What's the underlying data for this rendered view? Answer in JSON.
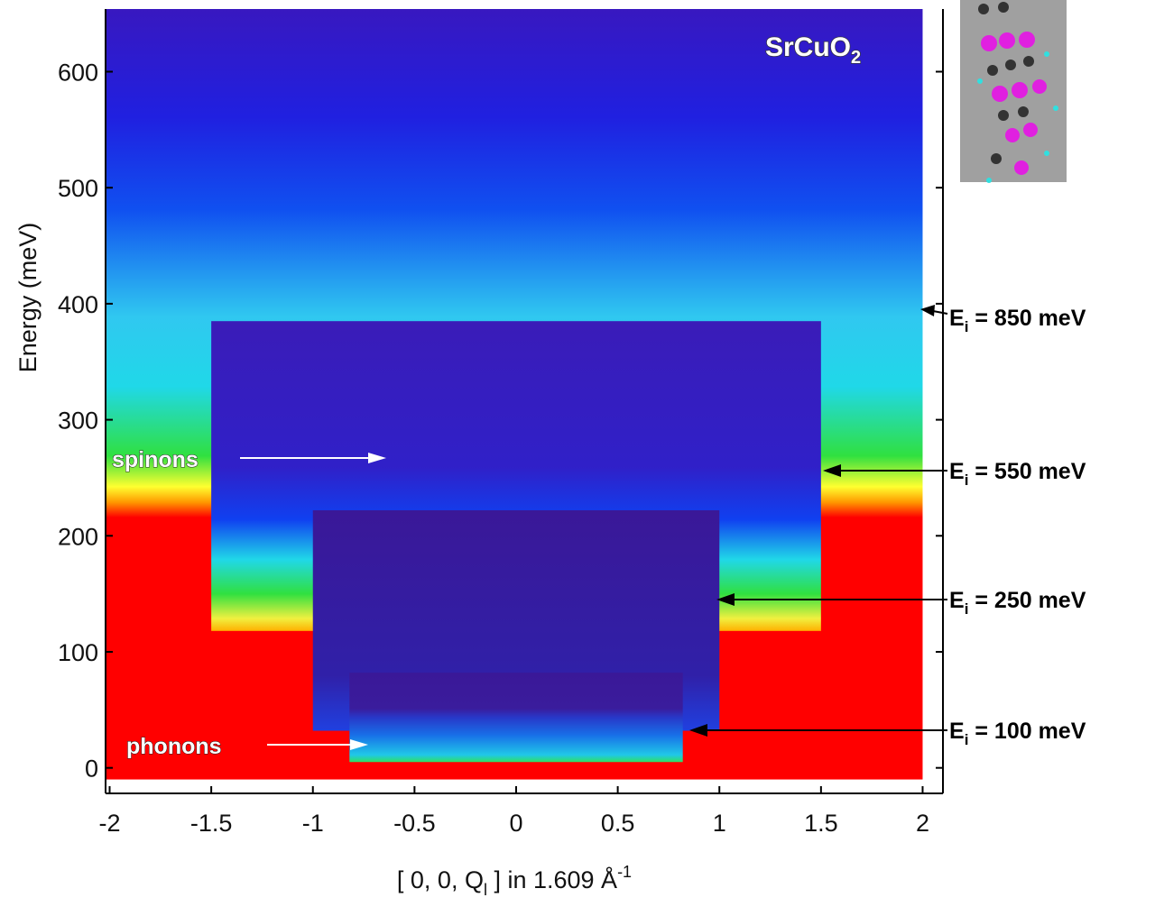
{
  "chart_data": {
    "type": "heatmap",
    "title": {
      "main": "SrCuO",
      "subscript": "2"
    },
    "xlabel": {
      "before": "[ 0, 0, Q",
      "subscript": "l",
      "after": " ] in 1.609 Å",
      "superscript": "-1"
    },
    "ylabel": "Energy  (meV)",
    "xlim": [
      -2.02,
      2.1
    ],
    "ylim": [
      -22,
      654
    ],
    "xticks": [
      -2,
      -1.5,
      -1,
      -0.5,
      0,
      0.5,
      1,
      1.5,
      2
    ],
    "yticks": [
      0,
      100,
      200,
      300,
      400,
      500,
      600
    ],
    "regions": [
      {
        "label": {
          "symbol": "E",
          "subscript": "i",
          "text": " = 850 meV"
        },
        "x_range": [
          -2.02,
          2.0
        ],
        "y_range": [
          -10,
          654
        ]
      },
      {
        "label": {
          "symbol": "E",
          "subscript": "i",
          "text": " = 550 meV"
        },
        "x_range": [
          -1.5,
          1.5
        ],
        "y_range": [
          118,
          385
        ]
      },
      {
        "label": {
          "symbol": "E",
          "subscript": "i",
          "text": " = 250 meV"
        },
        "x_range": [
          -1.0,
          1.0
        ],
        "y_range": [
          32,
          222
        ]
      },
      {
        "label": {
          "symbol": "E",
          "subscript": "i",
          "text": " = 100 meV"
        },
        "x_range": [
          -0.82,
          0.82
        ],
        "y_range": [
          5,
          82
        ]
      }
    ],
    "annotations": [
      "spinons",
      "phonons"
    ]
  }
}
